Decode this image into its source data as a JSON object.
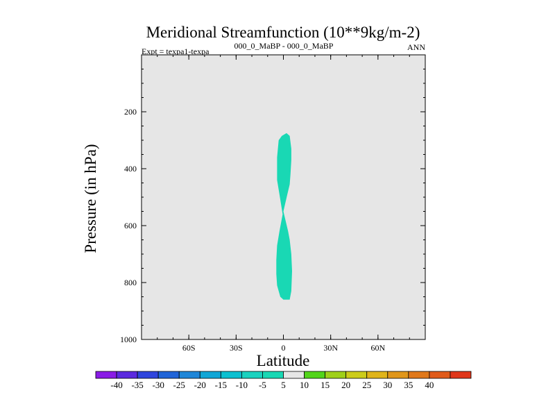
{
  "chart_data": {
    "type": "heatmap",
    "title": "Meridional Streamfunction (10**9kg/m-2)",
    "subtitle_left": "Expt = texpa1-texpa",
    "subtitle_center": "000_0_MaBP - 000_0_MaBP",
    "subtitle_right": "ANN",
    "xlabel": "Latitude",
    "ylabel": "Pressure (in hPa)",
    "x_ticks": [
      {
        "value": -60,
        "label": "60S"
      },
      {
        "value": -30,
        "label": "30S"
      },
      {
        "value": 0,
        "label": "0"
      },
      {
        "value": 30,
        "label": "30N"
      },
      {
        "value": 60,
        "label": "60N"
      }
    ],
    "y_ticks": [
      {
        "value": 200,
        "label": "200"
      },
      {
        "value": 400,
        "label": "400"
      },
      {
        "value": 600,
        "label": "600"
      },
      {
        "value": 800,
        "label": "800"
      },
      {
        "value": 1000,
        "label": "1000"
      }
    ],
    "xlim": [
      -90,
      90
    ],
    "ylim": [
      1000,
      0
    ],
    "y_minor_step": 50,
    "x_minor_step": 10,
    "background_color": "#e6e6e6",
    "filled_regions": [
      {
        "level_range": [
          -10,
          -5
        ],
        "color": "#19d8b4",
        "outline": [
          [
            2.0,
            275
          ],
          [
            4.0,
            285
          ],
          [
            5.0,
            330
          ],
          [
            5.0,
            370
          ],
          [
            4.5,
            420
          ],
          [
            4.0,
            455
          ],
          [
            2.5,
            490
          ],
          [
            0.0,
            550
          ],
          [
            3.0,
            620
          ],
          [
            4.0,
            650
          ],
          [
            5.0,
            700
          ],
          [
            5.5,
            760
          ],
          [
            5.0,
            830
          ],
          [
            4.0,
            860
          ],
          [
            0.0,
            860
          ],
          [
            -2.0,
            850
          ],
          [
            -4.0,
            810
          ],
          [
            -4.5,
            770
          ],
          [
            -4.5,
            720
          ],
          [
            -4.0,
            670
          ],
          [
            -2.5,
            620
          ],
          [
            -0.5,
            560
          ],
          [
            -2.5,
            490
          ],
          [
            -4.0,
            440
          ],
          [
            -4.0,
            360
          ],
          [
            -3.0,
            300
          ],
          [
            -1.0,
            285
          ]
        ]
      }
    ],
    "colorbar": {
      "labels": [
        "-40",
        "-35",
        "-30",
        "-25",
        "-20",
        "-15",
        "-10",
        "-5",
        "5",
        "10",
        "15",
        "20",
        "25",
        "30",
        "35",
        "40"
      ],
      "colors": [
        "#8a1ce6",
        "#5b2adf",
        "#2f45dd",
        "#2064d8",
        "#1f86d8",
        "#10a6d6",
        "#0cc0d0",
        "#1bd2bf",
        "#19d8b4",
        "#e6e6e6",
        "#52d41a",
        "#9fd01a",
        "#cccc1b",
        "#e0b41a",
        "#e0961a",
        "#e0781a",
        "#e05a1a",
        "#e0361a"
      ]
    }
  }
}
